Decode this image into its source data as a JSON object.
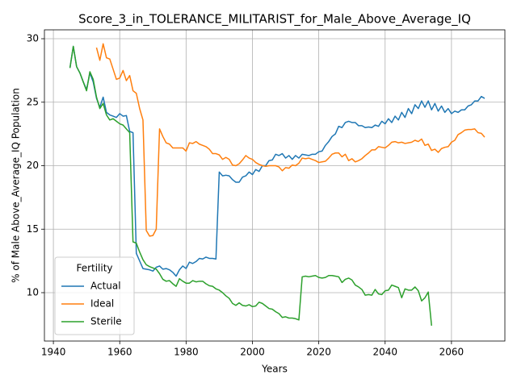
{
  "chart_data": {
    "type": "line",
    "title": "Score_3_in_TOLERANCE_MILITARIST_for_Male_Above_Average_IQ",
    "x_label": "Years",
    "y_label": "% of Male Above_Average_IQ Population",
    "legend_title": "Fertility",
    "legend_position": "lower left",
    "grid": true,
    "xlim": [
      1937.3,
      2076.1
    ],
    "ylim": [
      6.19,
      30.7
    ],
    "xticks": [
      1940,
      1960,
      1980,
      2000,
      2020,
      2040,
      2060
    ],
    "yticks": [
      10,
      15,
      20,
      25,
      30
    ],
    "x": [
      1945,
      1946,
      1947,
      1948,
      1949,
      1950,
      1951,
      1952,
      1953,
      1954,
      1955,
      1956,
      1957,
      1958,
      1959,
      1960,
      1961,
      1962,
      1963,
      1964,
      1965,
      1966,
      1967,
      1968,
      1969,
      1970,
      1971,
      1972,
      1973,
      1974,
      1975,
      1976,
      1977,
      1978,
      1979,
      1980,
      1981,
      1982,
      1983,
      1984,
      1985,
      1986,
      1987,
      1988,
      1989,
      1990,
      1991,
      1992,
      1993,
      1994,
      1995,
      1996,
      1997,
      1998,
      1999,
      2000,
      2001,
      2002,
      2003,
      2004,
      2005,
      2006,
      2007,
      2008,
      2009,
      2010,
      2011,
      2012,
      2013,
      2014,
      2015,
      2016,
      2017,
      2018,
      2019,
      2020,
      2021,
      2022,
      2023,
      2024,
      2025,
      2026,
      2027,
      2028,
      2029,
      2030,
      2031,
      2032,
      2033,
      2034,
      2035,
      2036,
      2037,
      2038,
      2039,
      2040,
      2041,
      2042,
      2043,
      2044,
      2045,
      2046,
      2047,
      2048,
      2049,
      2050,
      2051,
      2052,
      2053,
      2054,
      2055,
      2056,
      2057,
      2058,
      2059,
      2060,
      2061,
      2062,
      2063,
      2064,
      2065,
      2066,
      2067,
      2068,
      2069,
      2070
    ],
    "series": [
      {
        "name": "Actual",
        "color": "#1f77b4",
        "values": [
          27.7,
          29.4,
          27.8,
          27.3,
          26.6,
          26.0,
          27.3,
          26.6,
          25.3,
          24.6,
          25.4,
          24.2,
          24.0,
          23.9,
          23.8,
          24.1,
          23.9,
          23.95,
          22.7,
          22.6,
          13.1,
          12.5,
          11.9,
          11.85,
          11.8,
          11.7,
          12.0,
          12.1,
          11.85,
          11.9,
          11.8,
          11.6,
          11.3,
          11.8,
          12.1,
          11.9,
          12.4,
          12.3,
          12.45,
          12.7,
          12.65,
          12.8,
          12.7,
          12.7,
          12.65,
          19.5,
          19.2,
          19.25,
          19.2,
          18.9,
          18.7,
          18.7,
          19.1,
          19.2,
          19.5,
          19.3,
          19.7,
          19.55,
          20.0,
          20.0,
          20.4,
          20.45,
          20.9,
          20.8,
          20.95,
          20.6,
          20.8,
          20.5,
          20.8,
          20.6,
          20.9,
          20.85,
          20.8,
          20.9,
          20.9,
          21.1,
          21.15,
          21.6,
          21.9,
          22.3,
          22.5,
          23.1,
          23.0,
          23.4,
          23.5,
          23.4,
          23.4,
          23.15,
          23.15,
          23.0,
          23.05,
          23.0,
          23.2,
          23.1,
          23.5,
          23.3,
          23.7,
          23.4,
          23.9,
          23.6,
          24.2,
          23.8,
          24.5,
          24.1,
          24.8,
          24.5,
          25.1,
          24.6,
          25.1,
          24.4,
          24.9,
          24.3,
          24.7,
          24.2,
          24.5,
          24.1,
          24.3,
          24.2,
          24.4,
          24.4,
          24.7,
          24.8,
          25.1,
          25.1,
          25.45,
          25.3
        ]
      },
      {
        "name": "Ideal",
        "color": "#ff7f0e",
        "values": [
          null,
          null,
          null,
          null,
          null,
          null,
          null,
          null,
          29.3,
          28.3,
          29.6,
          28.5,
          28.4,
          27.6,
          26.8,
          26.9,
          27.5,
          26.7,
          27.1,
          25.9,
          25.7,
          24.5,
          23.6,
          14.9,
          14.45,
          14.5,
          15.0,
          22.9,
          22.3,
          21.8,
          21.7,
          21.4,
          21.4,
          21.4,
          21.4,
          21.15,
          21.8,
          21.75,
          21.9,
          21.7,
          21.6,
          21.5,
          21.3,
          20.95,
          20.95,
          20.85,
          20.5,
          20.65,
          20.5,
          20.05,
          20.0,
          20.15,
          20.45,
          20.8,
          20.6,
          20.5,
          20.25,
          20.1,
          20.0,
          19.95,
          20.0,
          20.0,
          20.0,
          19.9,
          19.6,
          19.85,
          19.8,
          20.05,
          20.0,
          20.2,
          20.6,
          20.55,
          20.6,
          20.5,
          20.4,
          20.25,
          20.3,
          20.35,
          20.6,
          20.9,
          21.0,
          21.0,
          20.7,
          20.9,
          20.4,
          20.55,
          20.3,
          20.4,
          20.55,
          20.8,
          21.0,
          21.25,
          21.25,
          21.5,
          21.45,
          21.4,
          21.6,
          21.85,
          21.9,
          21.8,
          21.85,
          21.75,
          21.8,
          21.85,
          22.0,
          21.9,
          22.1,
          21.6,
          21.7,
          21.2,
          21.3,
          21.05,
          21.35,
          21.45,
          21.5,
          21.85,
          22.0,
          22.45,
          22.6,
          22.8,
          22.85,
          22.85,
          22.9,
          22.6,
          22.55,
          22.25
        ]
      },
      {
        "name": "Sterile",
        "color": "#2ca02c",
        "values": [
          27.7,
          29.4,
          27.8,
          27.3,
          26.6,
          25.9,
          27.4,
          26.8,
          25.4,
          24.5,
          24.9,
          24.0,
          23.6,
          23.7,
          23.5,
          23.3,
          23.2,
          22.9,
          22.6,
          14.0,
          13.9,
          13.2,
          12.6,
          12.2,
          12.05,
          11.95,
          11.85,
          11.5,
          11.05,
          10.9,
          10.95,
          10.7,
          10.5,
          11.1,
          10.9,
          10.75,
          10.75,
          10.95,
          10.85,
          10.9,
          10.9,
          10.7,
          10.55,
          10.5,
          10.3,
          10.2,
          10.0,
          9.75,
          9.55,
          9.15,
          9.0,
          9.2,
          9.0,
          8.95,
          9.05,
          8.9,
          8.95,
          9.25,
          9.15,
          8.95,
          8.75,
          8.7,
          8.5,
          8.35,
          8.05,
          8.1,
          8.0,
          8.0,
          7.95,
          7.85,
          11.25,
          11.3,
          11.25,
          11.3,
          11.35,
          11.2,
          11.15,
          11.2,
          11.35,
          11.35,
          11.3,
          11.25,
          10.8,
          11.05,
          11.15,
          11.0,
          10.6,
          10.45,
          10.25,
          9.8,
          9.85,
          9.8,
          10.25,
          9.9,
          9.85,
          10.15,
          10.2,
          10.6,
          10.5,
          10.4,
          9.6,
          10.3,
          10.2,
          10.2,
          10.45,
          10.15,
          9.35,
          9.6,
          10.05,
          7.4,
          null,
          null,
          null,
          null,
          null,
          null,
          null,
          null,
          null,
          null,
          null,
          null,
          null,
          null,
          null,
          null
        ]
      }
    ]
  }
}
